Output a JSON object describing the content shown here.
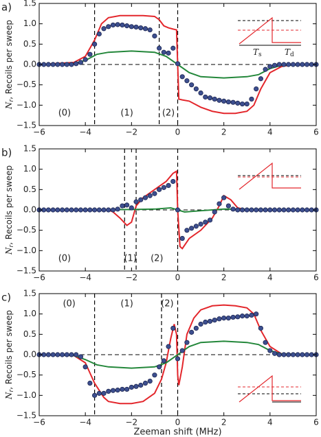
{
  "chart_data": [
    {
      "type": "line",
      "panel_label": "a)",
      "ylabel_symbol": "N",
      "ylabel_sub": "r",
      "ylabel": ", Recoils per sweep",
      "xlim": [
        -6,
        6
      ],
      "ylim": [
        -1.5,
        1.5
      ],
      "xticks": [
        {
          "value": -6,
          "label": "−6"
        },
        {
          "value": -4,
          "label": "−4"
        },
        {
          "value": -2,
          "label": "−2"
        },
        0,
        2,
        4,
        6
      ],
      "yticks": [
        {
          "value": -1.5,
          "label": "−1.5"
        },
        {
          "value": -1.0,
          "label": "−1.0"
        },
        {
          "value": -0.5,
          "label": "−0.5"
        },
        {
          "value": 0,
          "label": "0.0"
        },
        {
          "value": 0.5,
          "label": "0.5"
        },
        {
          "value": 1.0,
          "label": "1.0"
        },
        {
          "value": 1.5,
          "label": "1.5"
        }
      ],
      "vlines": [
        -3.6,
        -0.8,
        0
      ],
      "hline": 0,
      "annotations": [
        {
          "text": "(0)",
          "x": -4.9,
          "y": -1.2
        },
        {
          "text": "(1)",
          "x": -2.2,
          "y": -1.2
        },
        {
          "text": "(2)",
          "x": -0.4,
          "y": -1.2
        }
      ],
      "inset_labels": [
        "T",
        "s",
        "T",
        "d"
      ],
      "series": [
        {
          "type": "line",
          "color": "#e3262b",
          "x": [
            -6,
            -4.5,
            -4,
            -3.6,
            -3.3,
            -3,
            -2.5,
            -2,
            -1.5,
            -1,
            -0.8,
            -0.6,
            -0.4,
            -0.2,
            -0.05,
            0,
            0.05,
            0.2,
            0.5,
            1,
            1.5,
            2,
            2.5,
            3,
            3.3,
            3.6,
            4,
            4.5,
            5,
            6
          ],
          "values": [
            0,
            0.05,
            0.2,
            0.6,
            1.0,
            1.15,
            1.2,
            1.2,
            1.2,
            1.18,
            1.1,
            0.95,
            0.9,
            0.87,
            0.85,
            0,
            -0.85,
            -0.87,
            -0.9,
            -1.05,
            -1.15,
            -1.2,
            -1.2,
            -1.15,
            -1.0,
            -0.6,
            -0.2,
            -0.05,
            0,
            0
          ]
        },
        {
          "type": "line",
          "color": "#23873a",
          "x": [
            -6,
            -4.5,
            -4,
            -3.5,
            -3,
            -2,
            -1,
            -0.5,
            0,
            0.5,
            1,
            2,
            3,
            3.5,
            4,
            4.5,
            6
          ],
          "values": [
            0,
            0.02,
            0.1,
            0.25,
            0.3,
            0.33,
            0.3,
            0.2,
            0,
            -0.2,
            -0.3,
            -0.33,
            -0.3,
            -0.25,
            -0.1,
            -0.02,
            0
          ]
        },
        {
          "type": "scatter",
          "color": "#3d4f8f",
          "x": [
            -6,
            -5.8,
            -5.6,
            -5.4,
            -5.2,
            -5,
            -4.8,
            -4.6,
            -4.4,
            -4.2,
            -4,
            -3.8,
            -3.6,
            -3.4,
            -3.2,
            -3,
            -2.8,
            -2.6,
            -2.4,
            -2.2,
            -2,
            -1.8,
            -1.6,
            -1.4,
            -1.2,
            -1,
            -0.8,
            -0.6,
            -0.4,
            -0.2,
            0,
            0.2,
            0.4,
            0.6,
            0.8,
            1,
            1.2,
            1.4,
            1.6,
            1.8,
            2,
            2.2,
            2.4,
            2.6,
            2.8,
            3,
            3.2,
            3.4,
            3.6,
            3.8,
            4,
            4.2,
            4.4,
            4.6,
            4.8,
            5,
            5.2,
            5.4,
            5.6,
            5.8,
            6
          ],
          "values": [
            0,
            0,
            0,
            0,
            0,
            0,
            0,
            0,
            0.02,
            0.05,
            0.12,
            0.25,
            0.5,
            0.75,
            0.88,
            0.93,
            0.97,
            0.98,
            0.97,
            0.95,
            0.93,
            0.92,
            0.9,
            0.88,
            0.85,
            0.7,
            0.4,
            0.3,
            0.28,
            0.4,
            0.02,
            -0.3,
            -0.4,
            -0.5,
            -0.6,
            -0.7,
            -0.8,
            -0.82,
            -0.85,
            -0.88,
            -0.9,
            -0.92,
            -0.93,
            -0.95,
            -0.97,
            -0.97,
            -0.85,
            -0.6,
            -0.35,
            -0.12,
            -0.05,
            -0.02,
            0,
            0,
            0,
            0,
            0,
            0,
            0,
            0,
            0
          ]
        }
      ]
    },
    {
      "type": "line",
      "panel_label": "b)",
      "ylabel_symbol": "N",
      "ylabel_sub": "r",
      "ylabel": ", Recoils per sweep",
      "xlim": [
        -6,
        6
      ],
      "ylim": [
        -1.5,
        1.5
      ],
      "xticks": [
        {
          "value": -6,
          "label": "−6"
        },
        {
          "value": -4,
          "label": "−4"
        },
        {
          "value": -2,
          "label": "−2"
        },
        0,
        2,
        4,
        6
      ],
      "yticks": [
        {
          "value": -1.5,
          "label": "−1.5"
        },
        {
          "value": -1.0,
          "label": "−1.0"
        },
        {
          "value": -0.5,
          "label": "−0.5"
        },
        {
          "value": 0,
          "label": "0.0"
        },
        {
          "value": 0.5,
          "label": "0.5"
        },
        {
          "value": 1.0,
          "label": "1.0"
        },
        {
          "value": 1.5,
          "label": "1.5"
        }
      ],
      "vlines": [
        -2.3,
        -1.8,
        0
      ],
      "hline": 0,
      "annotations": [
        {
          "text": "(0)",
          "x": -4.9,
          "y": -1.2
        },
        {
          "text": "(1)",
          "x": -2.05,
          "y": -1.2
        },
        {
          "text": "(2)",
          "x": -0.9,
          "y": -1.2
        }
      ],
      "series": [
        {
          "type": "line",
          "color": "#e3262b",
          "x": [
            -6,
            -3,
            -2.8,
            -2.5,
            -2.2,
            -2,
            -1.8,
            -1.5,
            -1,
            -0.5,
            -0.2,
            -0.05,
            0,
            0.1,
            0.2,
            0.5,
            1,
            1.5,
            1.8,
            2,
            2.3,
            2.6,
            3,
            6
          ],
          "values": [
            0,
            0,
            -0.05,
            -0.2,
            -0.38,
            -0.3,
            0.1,
            0.3,
            0.5,
            0.7,
            0.9,
            0.95,
            0,
            -0.9,
            -0.95,
            -0.7,
            -0.5,
            -0.2,
            0.1,
            0.35,
            0.25,
            0.05,
            0,
            0
          ]
        },
        {
          "type": "line",
          "color": "#23873a",
          "x": [
            -6,
            -2,
            -1,
            -0.3,
            0,
            0.3,
            1,
            2,
            6
          ],
          "values": [
            0,
            0.01,
            0.02,
            0.05,
            0,
            -0.05,
            -0.02,
            0.02,
            0
          ]
        },
        {
          "type": "scatter",
          "color": "#3d4f8f",
          "x": [
            -6,
            -5.8,
            -5.6,
            -5.4,
            -5.2,
            -5,
            -4.8,
            -4.6,
            -4.4,
            -4.2,
            -4,
            -3.8,
            -3.6,
            -3.4,
            -3.2,
            -3,
            -2.8,
            -2.6,
            -2.4,
            -2.2,
            -2,
            -1.8,
            -1.6,
            -1.4,
            -1.2,
            -1,
            -0.8,
            -0.6,
            -0.4,
            -0.2,
            0,
            0.2,
            0.4,
            0.6,
            0.8,
            1,
            1.2,
            1.4,
            1.6,
            1.8,
            2,
            2.2,
            2.4,
            2.6,
            2.8,
            3,
            3.2,
            3.4,
            3.6,
            3.8,
            4,
            4.2,
            4.4,
            4.6,
            4.8,
            5,
            5.2,
            5.4,
            5.6,
            5.8,
            6
          ],
          "values": [
            0,
            0,
            0,
            0,
            0,
            0,
            0,
            0,
            0,
            0,
            0,
            0,
            0,
            0,
            0,
            0,
            0,
            0.02,
            0.1,
            0.12,
            0.05,
            0.2,
            0.25,
            0.3,
            0.35,
            0.4,
            0.5,
            0.55,
            0.6,
            0.7,
            0,
            -0.7,
            -0.5,
            -0.45,
            -0.4,
            -0.35,
            -0.3,
            -0.25,
            -0.05,
            0.15,
            0.3,
            0.1,
            0.02,
            0,
            0,
            0,
            0,
            0,
            0,
            0,
            0,
            0,
            0,
            0,
            0,
            0,
            0,
            0,
            0,
            0,
            0
          ]
        }
      ]
    },
    {
      "type": "line",
      "panel_label": "c)",
      "ylabel_symbol": "N",
      "ylabel_sub": "r",
      "ylabel": ", Recoils per sweep",
      "xlabel": "Zeeman shift (MHz)",
      "xlim": [
        -6,
        6
      ],
      "ylim": [
        -1.5,
        1.5
      ],
      "xticks": [
        {
          "value": -6,
          "label": "−6"
        },
        {
          "value": -4,
          "label": "−4"
        },
        {
          "value": -2,
          "label": "−2"
        },
        0,
        2,
        4,
        6
      ],
      "yticks": [
        {
          "value": -1.5,
          "label": "−1.5"
        },
        {
          "value": -1.0,
          "label": "−1.0"
        },
        {
          "value": -0.5,
          "label": "−0.5"
        },
        {
          "value": 0,
          "label": "0.0"
        },
        {
          "value": 0.5,
          "label": "0.5"
        },
        {
          "value": 1.0,
          "label": "1.0"
        },
        {
          "value": 1.5,
          "label": "1.5"
        }
      ],
      "vlines": [
        -3.6,
        -0.7,
        0
      ],
      "hline": 0,
      "annotations": [
        {
          "text": "(0)",
          "x": -4.7,
          "y": 1.25
        },
        {
          "text": "(1)",
          "x": -2.2,
          "y": 1.25
        },
        {
          "text": "(2)",
          "x": -0.45,
          "y": 1.25
        }
      ],
      "series": [
        {
          "type": "line",
          "color": "#e3262b",
          "x": [
            -6,
            -4.5,
            -4,
            -3.6,
            -3.2,
            -3,
            -2.5,
            -2,
            -1.5,
            -1,
            -0.7,
            -0.5,
            -0.3,
            -0.15,
            -0.05,
            0,
            0.05,
            0.2,
            0.4,
            0.7,
            1,
            1.5,
            2,
            2.5,
            3,
            3.3,
            3.6,
            4,
            4.5,
            6
          ],
          "values": [
            0,
            -0.02,
            -0.2,
            -0.7,
            -1.05,
            -1.15,
            -1.2,
            -1.2,
            -1.15,
            -0.95,
            -0.6,
            -0.2,
            0.4,
            0.75,
            0.5,
            -0.5,
            -0.75,
            -0.3,
            0.5,
            0.9,
            1.1,
            1.2,
            1.22,
            1.2,
            1.15,
            1.0,
            0.6,
            0.2,
            0.02,
            0
          ]
        },
        {
          "type": "line",
          "color": "#23873a",
          "x": [
            -6,
            -4.5,
            -4,
            -3.5,
            -3,
            -2,
            -1,
            -0.5,
            0,
            0.5,
            1,
            2,
            3,
            3.5,
            4,
            4.5,
            6
          ],
          "values": [
            0,
            -0.02,
            -0.12,
            -0.25,
            -0.3,
            -0.33,
            -0.3,
            -0.2,
            0,
            0.2,
            0.3,
            0.33,
            0.3,
            0.25,
            0.1,
            0.02,
            0
          ]
        },
        {
          "type": "scatter",
          "color": "#3d4f8f",
          "x": [
            -6,
            -5.8,
            -5.6,
            -5.4,
            -5.2,
            -5,
            -4.8,
            -4.6,
            -4.4,
            -4.2,
            -4,
            -3.8,
            -3.6,
            -3.4,
            -3.2,
            -3,
            -2.8,
            -2.6,
            -2.4,
            -2.2,
            -2,
            -1.8,
            -1.6,
            -1.4,
            -1.2,
            -1,
            -0.8,
            -0.6,
            -0.4,
            -0.2,
            0,
            0.2,
            0.4,
            0.6,
            0.8,
            1,
            1.2,
            1.4,
            1.6,
            1.8,
            2,
            2.2,
            2.4,
            2.6,
            2.8,
            3,
            3.2,
            3.4,
            3.6,
            3.8,
            4,
            4.2,
            4.4,
            4.6,
            4.8,
            5,
            5.2,
            5.4,
            5.6,
            5.8,
            6
          ],
          "values": [
            0,
            0,
            0,
            0,
            0,
            0,
            0,
            0,
            0,
            -0.05,
            -0.3,
            -0.7,
            -1.0,
            -0.95,
            -0.95,
            -0.9,
            -0.88,
            -0.87,
            -0.85,
            -0.85,
            -0.8,
            -0.78,
            -0.75,
            -0.7,
            -0.65,
            -0.5,
            -0.3,
            -0.15,
            0.2,
            0.65,
            -0.1,
            0.1,
            0.3,
            0.55,
            0.65,
            0.75,
            0.8,
            0.82,
            0.85,
            0.88,
            0.9,
            0.9,
            0.92,
            0.93,
            0.95,
            0.95,
            0.97,
            1.0,
            0.65,
            0.3,
            0.1,
            0.03,
            0,
            0,
            0,
            0,
            0,
            0,
            0,
            0,
            0
          ]
        }
      ]
    }
  ]
}
